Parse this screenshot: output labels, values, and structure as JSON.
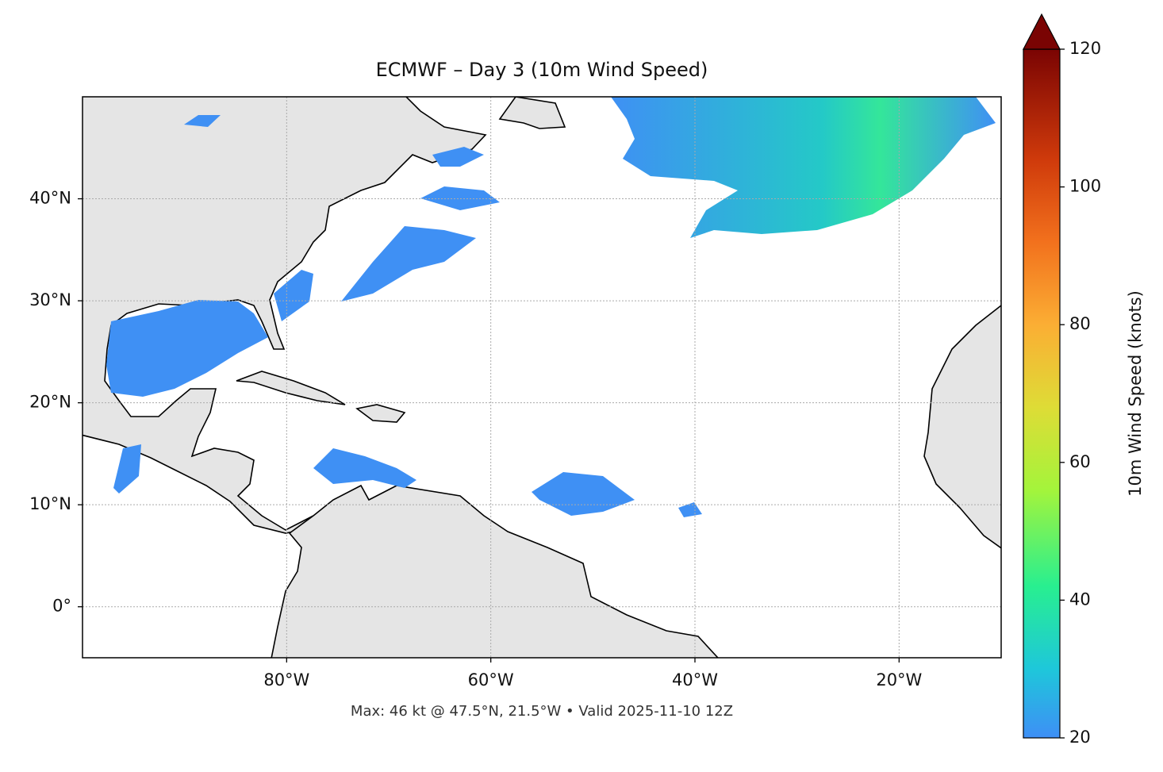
{
  "map": {
    "title": "ECMWF – Day 3 (10m Wind Speed)",
    "footer": "Max: 46 kt @ 47.5°N, 21.5°W • Valid 2025-11-10 12Z",
    "xlim": [
      -100,
      -10
    ],
    "ylim": [
      -5,
      50
    ],
    "xticks": [
      {
        "value": -80,
        "label": "80°W"
      },
      {
        "value": -60,
        "label": "60°W"
      },
      {
        "value": -40,
        "label": "40°W"
      },
      {
        "value": -20,
        "label": "20°W"
      }
    ],
    "yticks": [
      {
        "value": 0,
        "label": "0°"
      },
      {
        "value": 10,
        "label": "10°N"
      },
      {
        "value": 20,
        "label": "20°N"
      },
      {
        "value": 30,
        "label": "30°N"
      },
      {
        "value": 40,
        "label": "40°N"
      }
    ],
    "grid": true,
    "colorbar": {
      "label": "10m Wind Speed (knots)",
      "lim": [
        20,
        120
      ],
      "ticks": [
        20,
        40,
        60,
        80,
        100,
        120
      ],
      "extend": "max"
    }
  }
}
